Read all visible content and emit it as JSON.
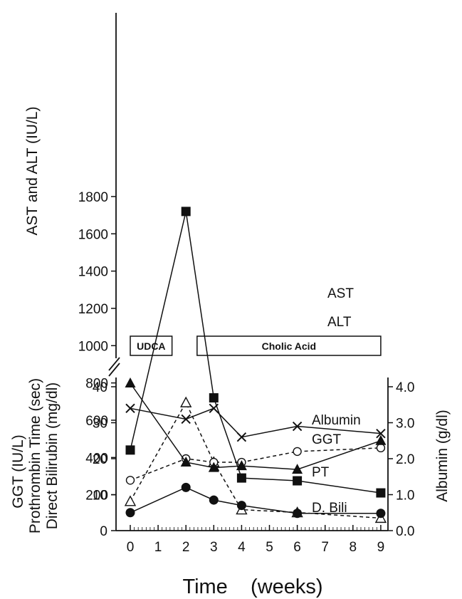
{
  "chart_data": [
    {
      "type": "line",
      "ylabel": "AST and ALT  (IU/L)",
      "ylim": [
        0,
        1800
      ],
      "yticks": [
        "200",
        "400",
        "600",
        "800",
        "1000",
        "1200",
        "1400",
        "1600",
        "1800"
      ],
      "series": [
        {
          "name": "AST",
          "style": "solid",
          "marker": "filled-square",
          "x": [
            0,
            2,
            3,
            4,
            6,
            9
          ],
          "y": [
            440,
            1720,
            720,
            290,
            275,
            210
          ]
        },
        {
          "name": "ALT",
          "style": "dashed",
          "marker": "open-triangle",
          "x": [
            0,
            2,
            3,
            4,
            6,
            9
          ],
          "y": [
            165,
            695,
            375,
            120,
            105,
            75
          ]
        }
      ],
      "treatments": [
        {
          "label": "UDCA",
          "from": 0,
          "to": 1.5
        },
        {
          "label": "Cholic Acid",
          "from": 2.4,
          "to": 9
        }
      ]
    },
    {
      "type": "line",
      "ylabel_left": [
        "GGT  (IU/L)",
        "Prothrombin Time  (sec)",
        "Direct Bilirubin  (mg/dl)"
      ],
      "ylabel_right": "Albumin  (g/dl)",
      "ylim_left": [
        0,
        40
      ],
      "ylim_right": [
        0.0,
        4.0
      ],
      "yticks_left": [
        "0",
        "10",
        "20",
        "30",
        "40"
      ],
      "yticks_right": [
        "0.0",
        "1.0",
        "2.0",
        "3.0",
        "4.0"
      ],
      "xlabel": "Time    (weeks)",
      "xticks": [
        "0",
        "1",
        "2",
        "3",
        "4",
        "5",
        "6",
        "7",
        "8",
        "9"
      ],
      "series": [
        {
          "name": "Albumin",
          "axis": "right",
          "style": "solid",
          "marker": "x",
          "x": [
            0,
            2,
            3,
            4,
            6,
            9
          ],
          "y": [
            3.4,
            3.1,
            3.4,
            2.6,
            2.9,
            2.7
          ]
        },
        {
          "name": "GGT",
          "axis": "left",
          "style": "dashed",
          "marker": "open-circle",
          "x": [
            0,
            2,
            3,
            4,
            6,
            9
          ],
          "y": [
            14,
            20,
            19,
            19,
            22,
            23
          ]
        },
        {
          "name": "PT",
          "axis": "left",
          "style": "solid",
          "marker": "filled-triangle",
          "x": [
            0,
            2,
            3,
            4,
            6,
            9
          ],
          "y": [
            41,
            19,
            17.5,
            18,
            17,
            25
          ]
        },
        {
          "name": "D. Bili",
          "axis": "left",
          "style": "solid",
          "marker": "filled-circle",
          "x": [
            0,
            2,
            3,
            4,
            6,
            9
          ],
          "y": [
            5,
            12,
            8.5,
            7,
            4.8,
            4.8
          ]
        }
      ]
    }
  ]
}
